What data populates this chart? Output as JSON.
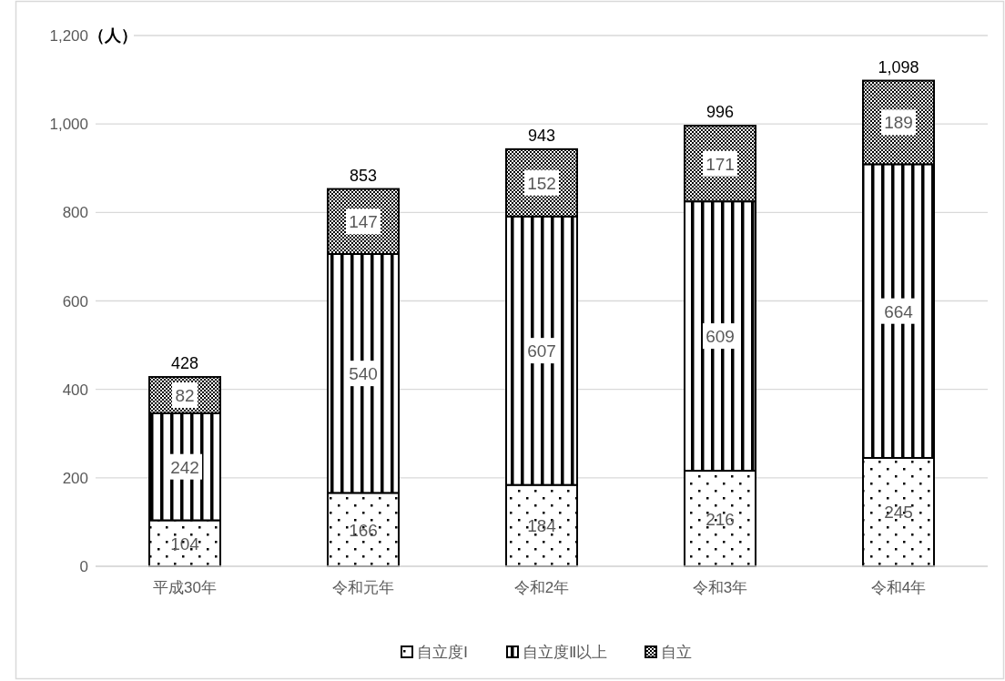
{
  "chart_data": {
    "type": "bar",
    "stacked": true,
    "ylabel": "（人）",
    "categories": [
      "平成30年",
      "令和元年",
      "令和2年",
      "令和3年",
      "令和4年"
    ],
    "series": [
      {
        "name": "自立度Ⅰ",
        "color": "#000000",
        "values": [
          104,
          166,
          184,
          216,
          245
        ]
      },
      {
        "name": "自立度Ⅱ以上",
        "color": "#000000",
        "values": [
          242,
          540,
          607,
          609,
          664
        ]
      },
      {
        "name": "自立",
        "color": "#000000",
        "values": [
          82,
          147,
          152,
          171,
          189
        ]
      }
    ],
    "totals": [
      "428",
      "853",
      "943",
      "996",
      "1,098"
    ],
    "data_labels": true,
    "grid": "y",
    "legend": "bottom",
    "ylim": [
      0,
      1200
    ],
    "yticks": [
      0,
      200,
      400,
      600,
      800,
      {
        "value": 1000,
        "label": "1,000"
      },
      {
        "value": 1200,
        "label": "1,200"
      }
    ]
  }
}
